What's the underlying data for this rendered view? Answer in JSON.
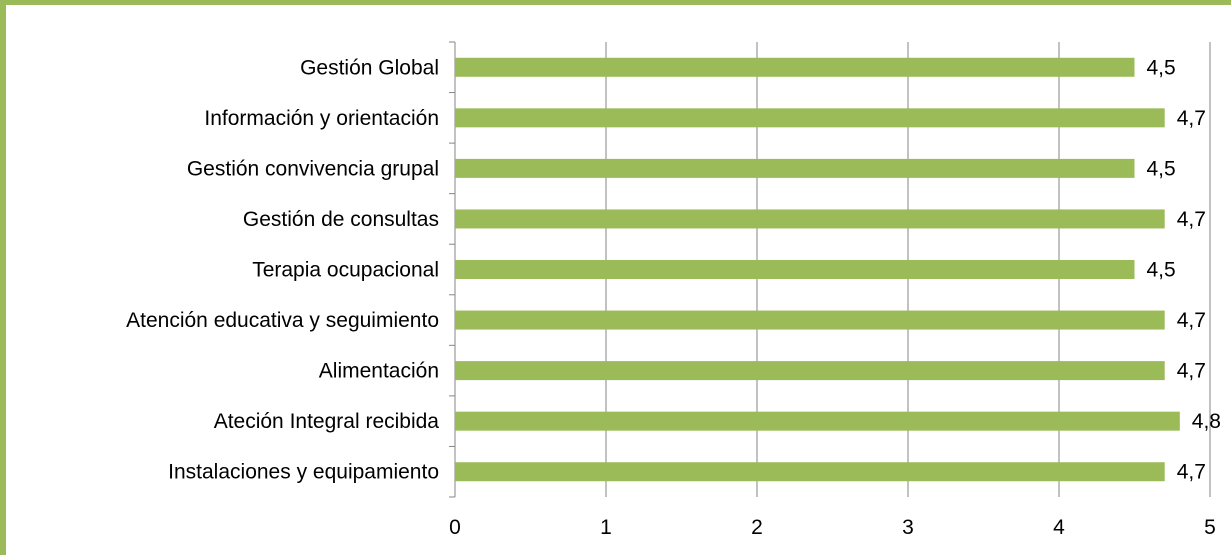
{
  "chart_data": {
    "type": "bar",
    "orientation": "horizontal",
    "categories": [
      "Gestión Global ",
      "Información y orientación",
      "Gestión convivencia grupal",
      "Gestión de consultas",
      "Terapia ocupacional",
      "Atención educativa y seguimiento",
      "Alimentación ",
      "Ateción Integral recibida",
      "Instalaciones y equipamiento"
    ],
    "values": [
      4.5,
      4.7,
      4.5,
      4.7,
      4.5,
      4.7,
      4.7,
      4.8,
      4.7
    ],
    "value_labels": [
      "4,5",
      "4,7",
      "4,5",
      "4,7",
      "4,5",
      "4,7",
      "4,7",
      "4,8",
      "4,7"
    ],
    "xlim": [
      0,
      5
    ],
    "xticks": [
      "0",
      "1",
      "2",
      "3",
      "4",
      "5"
    ],
    "grid": true,
    "bar_color": "#9bbb59",
    "frame_color": "#9bbb59",
    "gridline_color": "#868686"
  }
}
